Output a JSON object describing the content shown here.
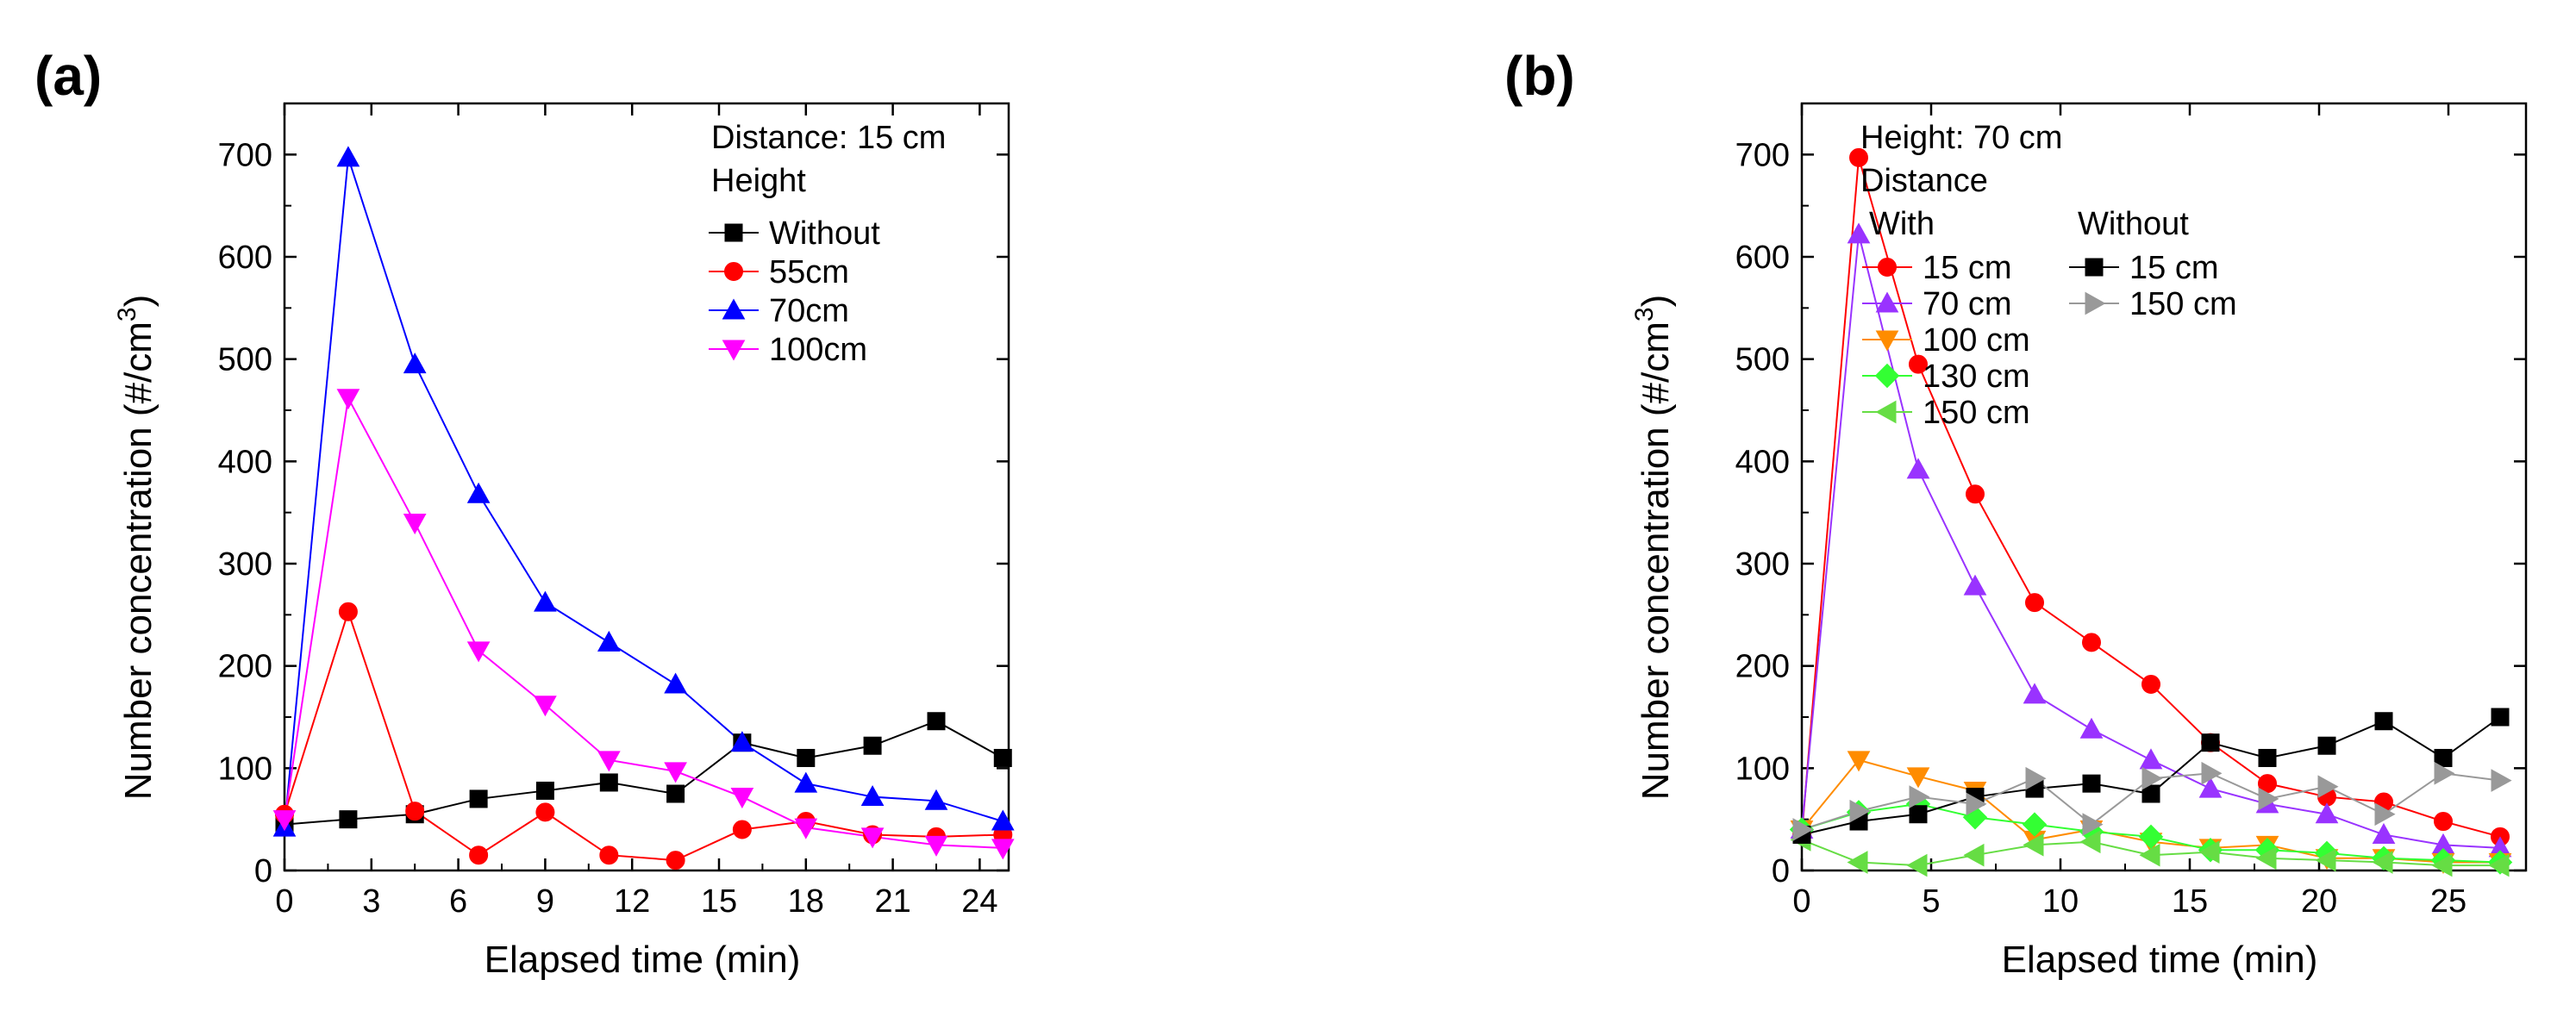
{
  "chart_data": [
    {
      "type": "line",
      "panel_label": "(a)",
      "xlabel": "Elapsed time (min)",
      "ylabel_main": "Number concentration (#/cm",
      "ylabel_sup": "3",
      "ylabel_end": ")",
      "xlim": [
        0,
        25
      ],
      "ylim": [
        0,
        750
      ],
      "xticks": [
        0,
        3,
        6,
        9,
        12,
        15,
        18,
        21,
        24
      ],
      "yticks": [
        0,
        100,
        200,
        300,
        400,
        500,
        600,
        700
      ],
      "legend_title_1": "Distance: 15 cm",
      "legend_title_2": "Height",
      "series": [
        {
          "name": "Without",
          "color": "#000000",
          "marker": "square",
          "x": [
            0,
            2.2,
            4.5,
            6.7,
            9,
            11.2,
            13.5,
            15.8,
            18,
            20.3,
            22.5,
            24.8
          ],
          "y": [
            45,
            50,
            55,
            70,
            78,
            86,
            75,
            125,
            110,
            122,
            146,
            110
          ]
        },
        {
          "name": "55cm",
          "color": "#ff0000",
          "marker": "circle",
          "x": [
            0,
            2.2,
            4.5,
            6.7,
            9,
            11.2,
            13.5,
            15.8,
            18,
            20.3,
            22.5,
            24.8
          ],
          "y": [
            55,
            253,
            58,
            15,
            57,
            15,
            10,
            40,
            48,
            35,
            33,
            35
          ]
        },
        {
          "name": "70cm",
          "color": "#0000ff",
          "marker": "triangle-up",
          "x": [
            0,
            2.2,
            4.5,
            6.7,
            9,
            11.2,
            13.5,
            15.8,
            18,
            20.3,
            22.5,
            24.8
          ],
          "y": [
            42,
            697,
            495,
            368,
            262,
            223,
            182,
            125,
            85,
            72,
            68,
            48
          ]
        },
        {
          "name": "100cm",
          "color": "#ff00ff",
          "marker": "triangle-down",
          "x": [
            0,
            2.2,
            4.5,
            6.7,
            9,
            11.2,
            13.5,
            15.8,
            18,
            20.3,
            22.5,
            24.8
          ],
          "y": [
            50,
            462,
            340,
            215,
            162,
            108,
            97,
            72,
            42,
            33,
            25,
            22
          ]
        }
      ]
    },
    {
      "type": "line",
      "panel_label": "(b)",
      "xlabel": "Elapsed time (min)",
      "ylabel_main": "Number concentration (#/cm",
      "ylabel_sup": "3",
      "ylabel_end": ")",
      "xlim": [
        0,
        28
      ],
      "ylim": [
        0,
        750
      ],
      "xticks": [
        0,
        5,
        10,
        15,
        20,
        25
      ],
      "yticks": [
        0,
        100,
        200,
        300,
        400,
        500,
        600,
        700
      ],
      "legend_title_1": "Height: 70 cm",
      "legend_title_2": "Distance",
      "legend_group_with": "With",
      "legend_group_without": "Without",
      "series": [
        {
          "name": "15 cm",
          "group": "With",
          "color": "#ff0000",
          "marker": "circle",
          "x": [
            0,
            2.2,
            4.5,
            6.7,
            9,
            11.2,
            13.5,
            15.8,
            18,
            20.3,
            22.5,
            24.8,
            27
          ],
          "y": [
            35,
            697,
            495,
            368,
            262,
            223,
            182,
            125,
            85,
            72,
            67,
            48,
            33
          ]
        },
        {
          "name": "70 cm",
          "group": "With",
          "color": "#9933ff",
          "marker": "triangle-up",
          "x": [
            0,
            2.2,
            4.5,
            6.7,
            9,
            11.2,
            13.5,
            15.8,
            18,
            20.3,
            22.5,
            24.8,
            27
          ],
          "y": [
            40,
            622,
            392,
            278,
            172,
            138,
            108,
            80,
            65,
            55,
            35,
            25,
            22
          ]
        },
        {
          "name": "100 cm",
          "group": "With",
          "color": "#ff8c00",
          "marker": "triangle-down",
          "x": [
            0,
            2.2,
            4.5,
            6.7,
            9,
            11.2,
            13.5,
            15.8,
            18,
            20.3,
            22.5,
            24.8,
            27
          ],
          "y": [
            40,
            108,
            92,
            78,
            30,
            40,
            28,
            22,
            25,
            12,
            12,
            8,
            8
          ]
        },
        {
          "name": "130 cm",
          "group": "With",
          "color": "#33ff33",
          "marker": "diamond",
          "x": [
            0,
            2.2,
            4.5,
            6.7,
            9,
            11.2,
            13.5,
            15.8,
            18,
            20.3,
            22.5,
            24.8,
            27
          ],
          "y": [
            40,
            57,
            65,
            52,
            45,
            38,
            33,
            20,
            20,
            17,
            12,
            10,
            8
          ]
        },
        {
          "name": "150 cm",
          "group": "With",
          "color": "#66dd44",
          "marker": "triangle-left",
          "x": [
            0,
            2.2,
            4.5,
            6.7,
            9,
            11.2,
            13.5,
            15.8,
            18,
            20.3,
            22.5,
            24.8,
            27
          ],
          "y": [
            30,
            8,
            5,
            15,
            25,
            28,
            15,
            18,
            12,
            10,
            8,
            5,
            5
          ]
        },
        {
          "name": "15 cm",
          "group": "Without",
          "color": "#000000",
          "marker": "square",
          "x": [
            0,
            2.2,
            4.5,
            6.7,
            9,
            11.2,
            13.5,
            15.8,
            18,
            20.3,
            22.5,
            24.8,
            27
          ],
          "y": [
            35,
            48,
            55,
            72,
            80,
            85,
            75,
            125,
            110,
            122,
            146,
            110,
            150
          ]
        },
        {
          "name": "150 cm",
          "group": "Without",
          "color": "#999999",
          "marker": "triangle-right",
          "x": [
            0,
            2.2,
            4.5,
            6.7,
            9,
            11.2,
            13.5,
            15.8,
            18,
            20.3,
            22.5,
            24.8,
            27
          ],
          "y": [
            40,
            58,
            72,
            65,
            90,
            45,
            90,
            95,
            70,
            82,
            55,
            95,
            88
          ]
        }
      ]
    }
  ]
}
